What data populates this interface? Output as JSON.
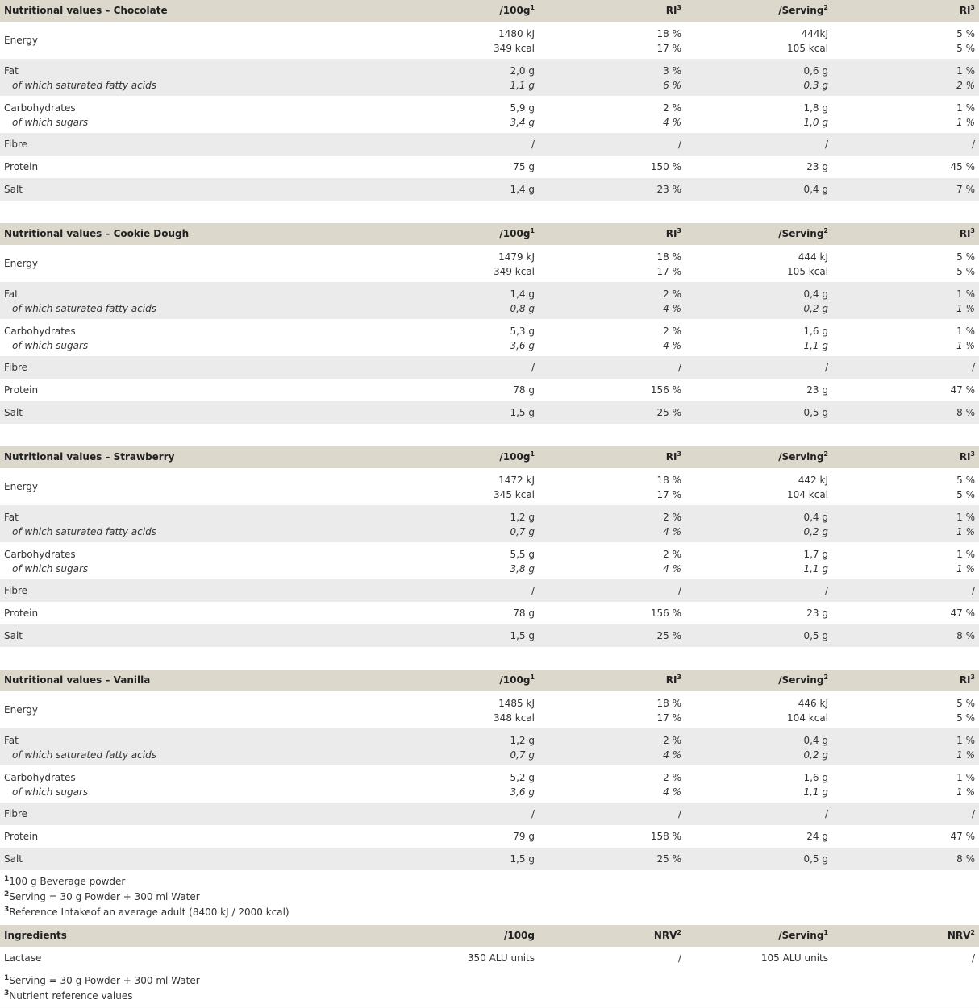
{
  "tables": [
    {
      "header": [
        {
          "text": "Nutritional values – Chocolate"
        },
        {
          "text": "/100g",
          "sup": "1"
        },
        {
          "text": "RI",
          "sup": "3"
        },
        {
          "text": "/Serving",
          "sup": "2"
        },
        {
          "text": "RI",
          "sup": "3"
        }
      ],
      "rows": [
        {
          "label": "Energy",
          "cells": [
            [
              "1480 kJ",
              "349 kcal"
            ],
            [
              "18 %",
              "17 %"
            ],
            [
              "444kJ",
              "105 kcal"
            ],
            [
              "5 %",
              "5 %"
            ]
          ]
        },
        {
          "label": [
            "Fat",
            "of which saturated fatty acids"
          ],
          "cells": [
            [
              "2,0 g",
              "1,1 g"
            ],
            [
              "3 %",
              "6 %"
            ],
            [
              "0,6 g",
              "0,3 g"
            ],
            [
              "1 %",
              "2 %"
            ]
          ]
        },
        {
          "label": [
            "Carbohydrates",
            "of which sugars"
          ],
          "cells": [
            [
              "5,9 g",
              "3,4 g"
            ],
            [
              "2 %",
              "4 %"
            ],
            [
              "1,8 g",
              "1,0 g"
            ],
            [
              "1 %",
              "1 %"
            ]
          ]
        },
        {
          "label": "Fibre",
          "cells": [
            [
              "/"
            ],
            [
              "/"
            ],
            [
              "/"
            ],
            [
              "/"
            ]
          ]
        },
        {
          "label": "Protein",
          "cells": [
            [
              "75 g"
            ],
            [
              "150 %"
            ],
            [
              "23 g"
            ],
            [
              "45 %"
            ]
          ]
        },
        {
          "label": "Salt",
          "cells": [
            [
              "1,4 g"
            ],
            [
              "23 %"
            ],
            [
              "0,4 g"
            ],
            [
              "7 %"
            ]
          ]
        }
      ]
    },
    {
      "header": [
        {
          "text": "Nutritional values – Cookie Dough"
        },
        {
          "text": "/100g",
          "sup": "1"
        },
        {
          "text": "RI",
          "sup": "3"
        },
        {
          "text": "/Serving",
          "sup": "2"
        },
        {
          "text": "RI",
          "sup": "3"
        }
      ],
      "rows": [
        {
          "label": "Energy",
          "cells": [
            [
              "1479 kJ",
              "349 kcal"
            ],
            [
              "18 %",
              "17 %"
            ],
            [
              "444 kJ",
              "105 kcal"
            ],
            [
              "5 %",
              "5 %"
            ]
          ]
        },
        {
          "label": [
            "Fat",
            "of which saturated fatty acids"
          ],
          "cells": [
            [
              "1,4 g",
              "0,8 g"
            ],
            [
              "2 %",
              "4 %"
            ],
            [
              "0,4 g",
              "0,2 g"
            ],
            [
              "1 %",
              "1 %"
            ]
          ]
        },
        {
          "label": [
            "Carbohydrates",
            "of which sugars"
          ],
          "cells": [
            [
              "5,3 g",
              "3,6 g"
            ],
            [
              "2 %",
              "4 %"
            ],
            [
              "1,6 g",
              "1,1 g"
            ],
            [
              "1 %",
              "1 %"
            ]
          ]
        },
        {
          "label": "Fibre",
          "cells": [
            [
              "/"
            ],
            [
              "/"
            ],
            [
              "/"
            ],
            [
              "/"
            ]
          ]
        },
        {
          "label": "Protein",
          "cells": [
            [
              "78 g"
            ],
            [
              "156 %"
            ],
            [
              "23 g"
            ],
            [
              "47 %"
            ]
          ]
        },
        {
          "label": "Salt",
          "cells": [
            [
              "1,5 g"
            ],
            [
              "25 %"
            ],
            [
              "0,5 g"
            ],
            [
              "8 %"
            ]
          ]
        }
      ]
    },
    {
      "header": [
        {
          "text": "Nutritional values – Strawberry"
        },
        {
          "text": "/100g",
          "sup": "1"
        },
        {
          "text": "RI",
          "sup": "3"
        },
        {
          "text": "/Serving",
          "sup": "2"
        },
        {
          "text": "RI",
          "sup": "3"
        }
      ],
      "rows": [
        {
          "label": "Energy",
          "cells": [
            [
              "1472 kJ",
              "345 kcal"
            ],
            [
              "18 %",
              "17 %"
            ],
            [
              "442 kJ",
              "104 kcal"
            ],
            [
              "5 %",
              "5 %"
            ]
          ]
        },
        {
          "label": [
            "Fat",
            "of which saturated fatty acids"
          ],
          "cells": [
            [
              "1,2 g",
              "0,7 g"
            ],
            [
              "2 %",
              "4 %"
            ],
            [
              "0,4 g",
              "0,2 g"
            ],
            [
              "1 %",
              "1 %"
            ]
          ]
        },
        {
          "label": [
            "Carbohydrates",
            "of which sugars"
          ],
          "cells": [
            [
              "5,5 g",
              "3,8 g"
            ],
            [
              "2 %",
              "4 %"
            ],
            [
              "1,7 g",
              "1,1 g"
            ],
            [
              "1 %",
              "1 %"
            ]
          ]
        },
        {
          "label": "Fibre",
          "cells": [
            [
              "/"
            ],
            [
              "/"
            ],
            [
              "/"
            ],
            [
              "/"
            ]
          ]
        },
        {
          "label": "Protein",
          "cells": [
            [
              "78 g"
            ],
            [
              "156 %"
            ],
            [
              "23 g"
            ],
            [
              "47 %"
            ]
          ]
        },
        {
          "label": "Salt",
          "cells": [
            [
              "1,5 g"
            ],
            [
              "25 %"
            ],
            [
              "0,5 g"
            ],
            [
              "8 %"
            ]
          ]
        }
      ]
    },
    {
      "header": [
        {
          "text": "Nutritional values – Vanilla"
        },
        {
          "text": "/100g",
          "sup": "1"
        },
        {
          "text": "RI",
          "sup": "3"
        },
        {
          "text": "/Serving",
          "sup": "2"
        },
        {
          "text": "RI",
          "sup": "3"
        }
      ],
      "rows": [
        {
          "label": "Energy",
          "cells": [
            [
              "1485 kJ",
              "348 kcal"
            ],
            [
              "18 %",
              "17 %"
            ],
            [
              "446 kJ",
              "104 kcal"
            ],
            [
              "5 %",
              "5 %"
            ]
          ]
        },
        {
          "label": [
            "Fat",
            "of which saturated fatty acids"
          ],
          "cells": [
            [
              "1,2 g",
              "0,7 g"
            ],
            [
              "2 %",
              "4 %"
            ],
            [
              "0,4 g",
              "0,2 g"
            ],
            [
              "1 %",
              "1 %"
            ]
          ]
        },
        {
          "label": [
            "Carbohydrates",
            "of which sugars"
          ],
          "cells": [
            [
              "5,2 g",
              "3,6 g"
            ],
            [
              "2 %",
              "4 %"
            ],
            [
              "1,6 g",
              "1,1 g"
            ],
            [
              "1 %",
              "1 %"
            ]
          ]
        },
        {
          "label": "Fibre",
          "cells": [
            [
              "/"
            ],
            [
              "/"
            ],
            [
              "/"
            ],
            [
              "/"
            ]
          ]
        },
        {
          "label": "Protein",
          "cells": [
            [
              "79 g"
            ],
            [
              "158 %"
            ],
            [
              "24 g"
            ],
            [
              "47 %"
            ]
          ]
        },
        {
          "label": "Salt",
          "cells": [
            [
              "1,5 g"
            ],
            [
              "25 %"
            ],
            [
              "0,5 g"
            ],
            [
              "8 %"
            ]
          ]
        }
      ],
      "footnotes": [
        {
          "sup": "1",
          "text": "100 g Beverage powder"
        },
        {
          "sup": "2",
          "text": "Serving = 30 g Powder + 300 ml Water"
        },
        {
          "sup": "3",
          "text": "Reference Intakeof an average adult (8400 kJ / 2000 kcal)"
        }
      ]
    },
    {
      "header": [
        {
          "text": "Ingredients"
        },
        {
          "text": "/100g"
        },
        {
          "text": "NRV",
          "sup": "2"
        },
        {
          "text": "/Serving",
          "sup": "1"
        },
        {
          "text": "NRV",
          "sup": "2"
        }
      ],
      "rows": [
        {
          "label": "Lactase",
          "cells": [
            [
              "350 ALU units"
            ],
            [
              "/"
            ],
            [
              "105 ALU units"
            ],
            [
              "/"
            ]
          ]
        }
      ],
      "footnotes": [
        {
          "sup": "1",
          "text": "Serving = 30 g Powder + 300 ml Water"
        },
        {
          "sup": "3",
          "text": "Nutrient reference values"
        }
      ]
    }
  ]
}
